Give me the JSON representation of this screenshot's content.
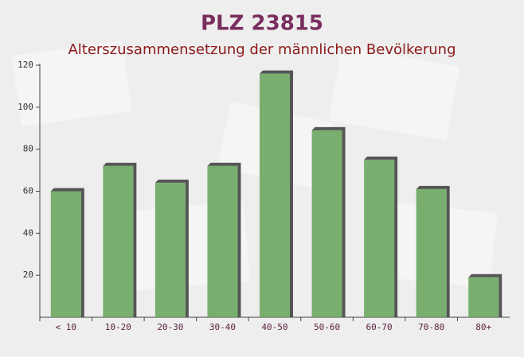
{
  "chart_data": {
    "type": "bar",
    "title": "PLZ 23815",
    "subtitle": "Alterszusammensetzung der männlichen Bevölkerung",
    "categories": [
      "< 10",
      "10-20",
      "20-30",
      "30-40",
      "40-50",
      "50-60",
      "60-70",
      "70-80",
      "80+"
    ],
    "values": [
      60,
      72,
      64,
      72,
      116,
      89,
      75,
      61,
      19
    ],
    "color": "#6aa760",
    "ylim": [
      0,
      120
    ],
    "yticks": [
      20,
      40,
      60,
      80,
      100,
      120
    ]
  }
}
